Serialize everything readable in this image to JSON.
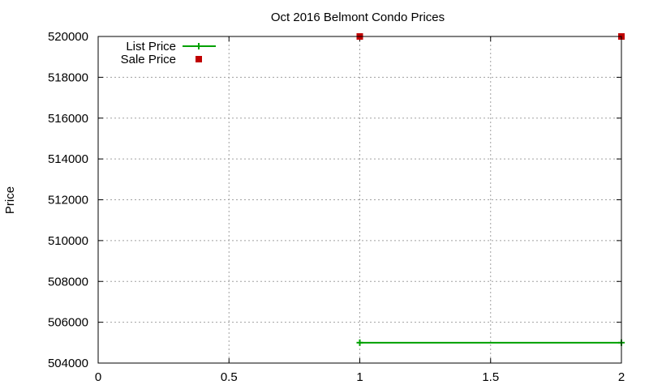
{
  "chart_data": {
    "type": "line",
    "title": "Oct 2016 Belmont Condo Prices",
    "xlabel": "",
    "ylabel": "Price",
    "xlim": [
      0,
      2
    ],
    "ylim": [
      504000,
      520000
    ],
    "x_ticks": [
      "0",
      "0.5",
      "1",
      "1.5",
      "2"
    ],
    "x_tick_values": [
      0,
      0.5,
      1,
      1.5,
      2
    ],
    "y_ticks": [
      "504000",
      "506000",
      "508000",
      "510000",
      "512000",
      "514000",
      "516000",
      "518000",
      "520000"
    ],
    "y_tick_values": [
      504000,
      506000,
      508000,
      510000,
      512000,
      514000,
      516000,
      518000,
      520000
    ],
    "grid": true,
    "legend_position": "top-left",
    "series": [
      {
        "name": "List Price",
        "style": "linespoints",
        "marker": "plus",
        "color": "#00a000",
        "x": [
          1,
          2
        ],
        "y": [
          505000,
          505000
        ]
      },
      {
        "name": "Sale Price",
        "style": "points",
        "marker": "square",
        "color": "#c00000",
        "x": [
          1,
          2
        ],
        "y": [
          520000,
          520000
        ]
      }
    ]
  }
}
